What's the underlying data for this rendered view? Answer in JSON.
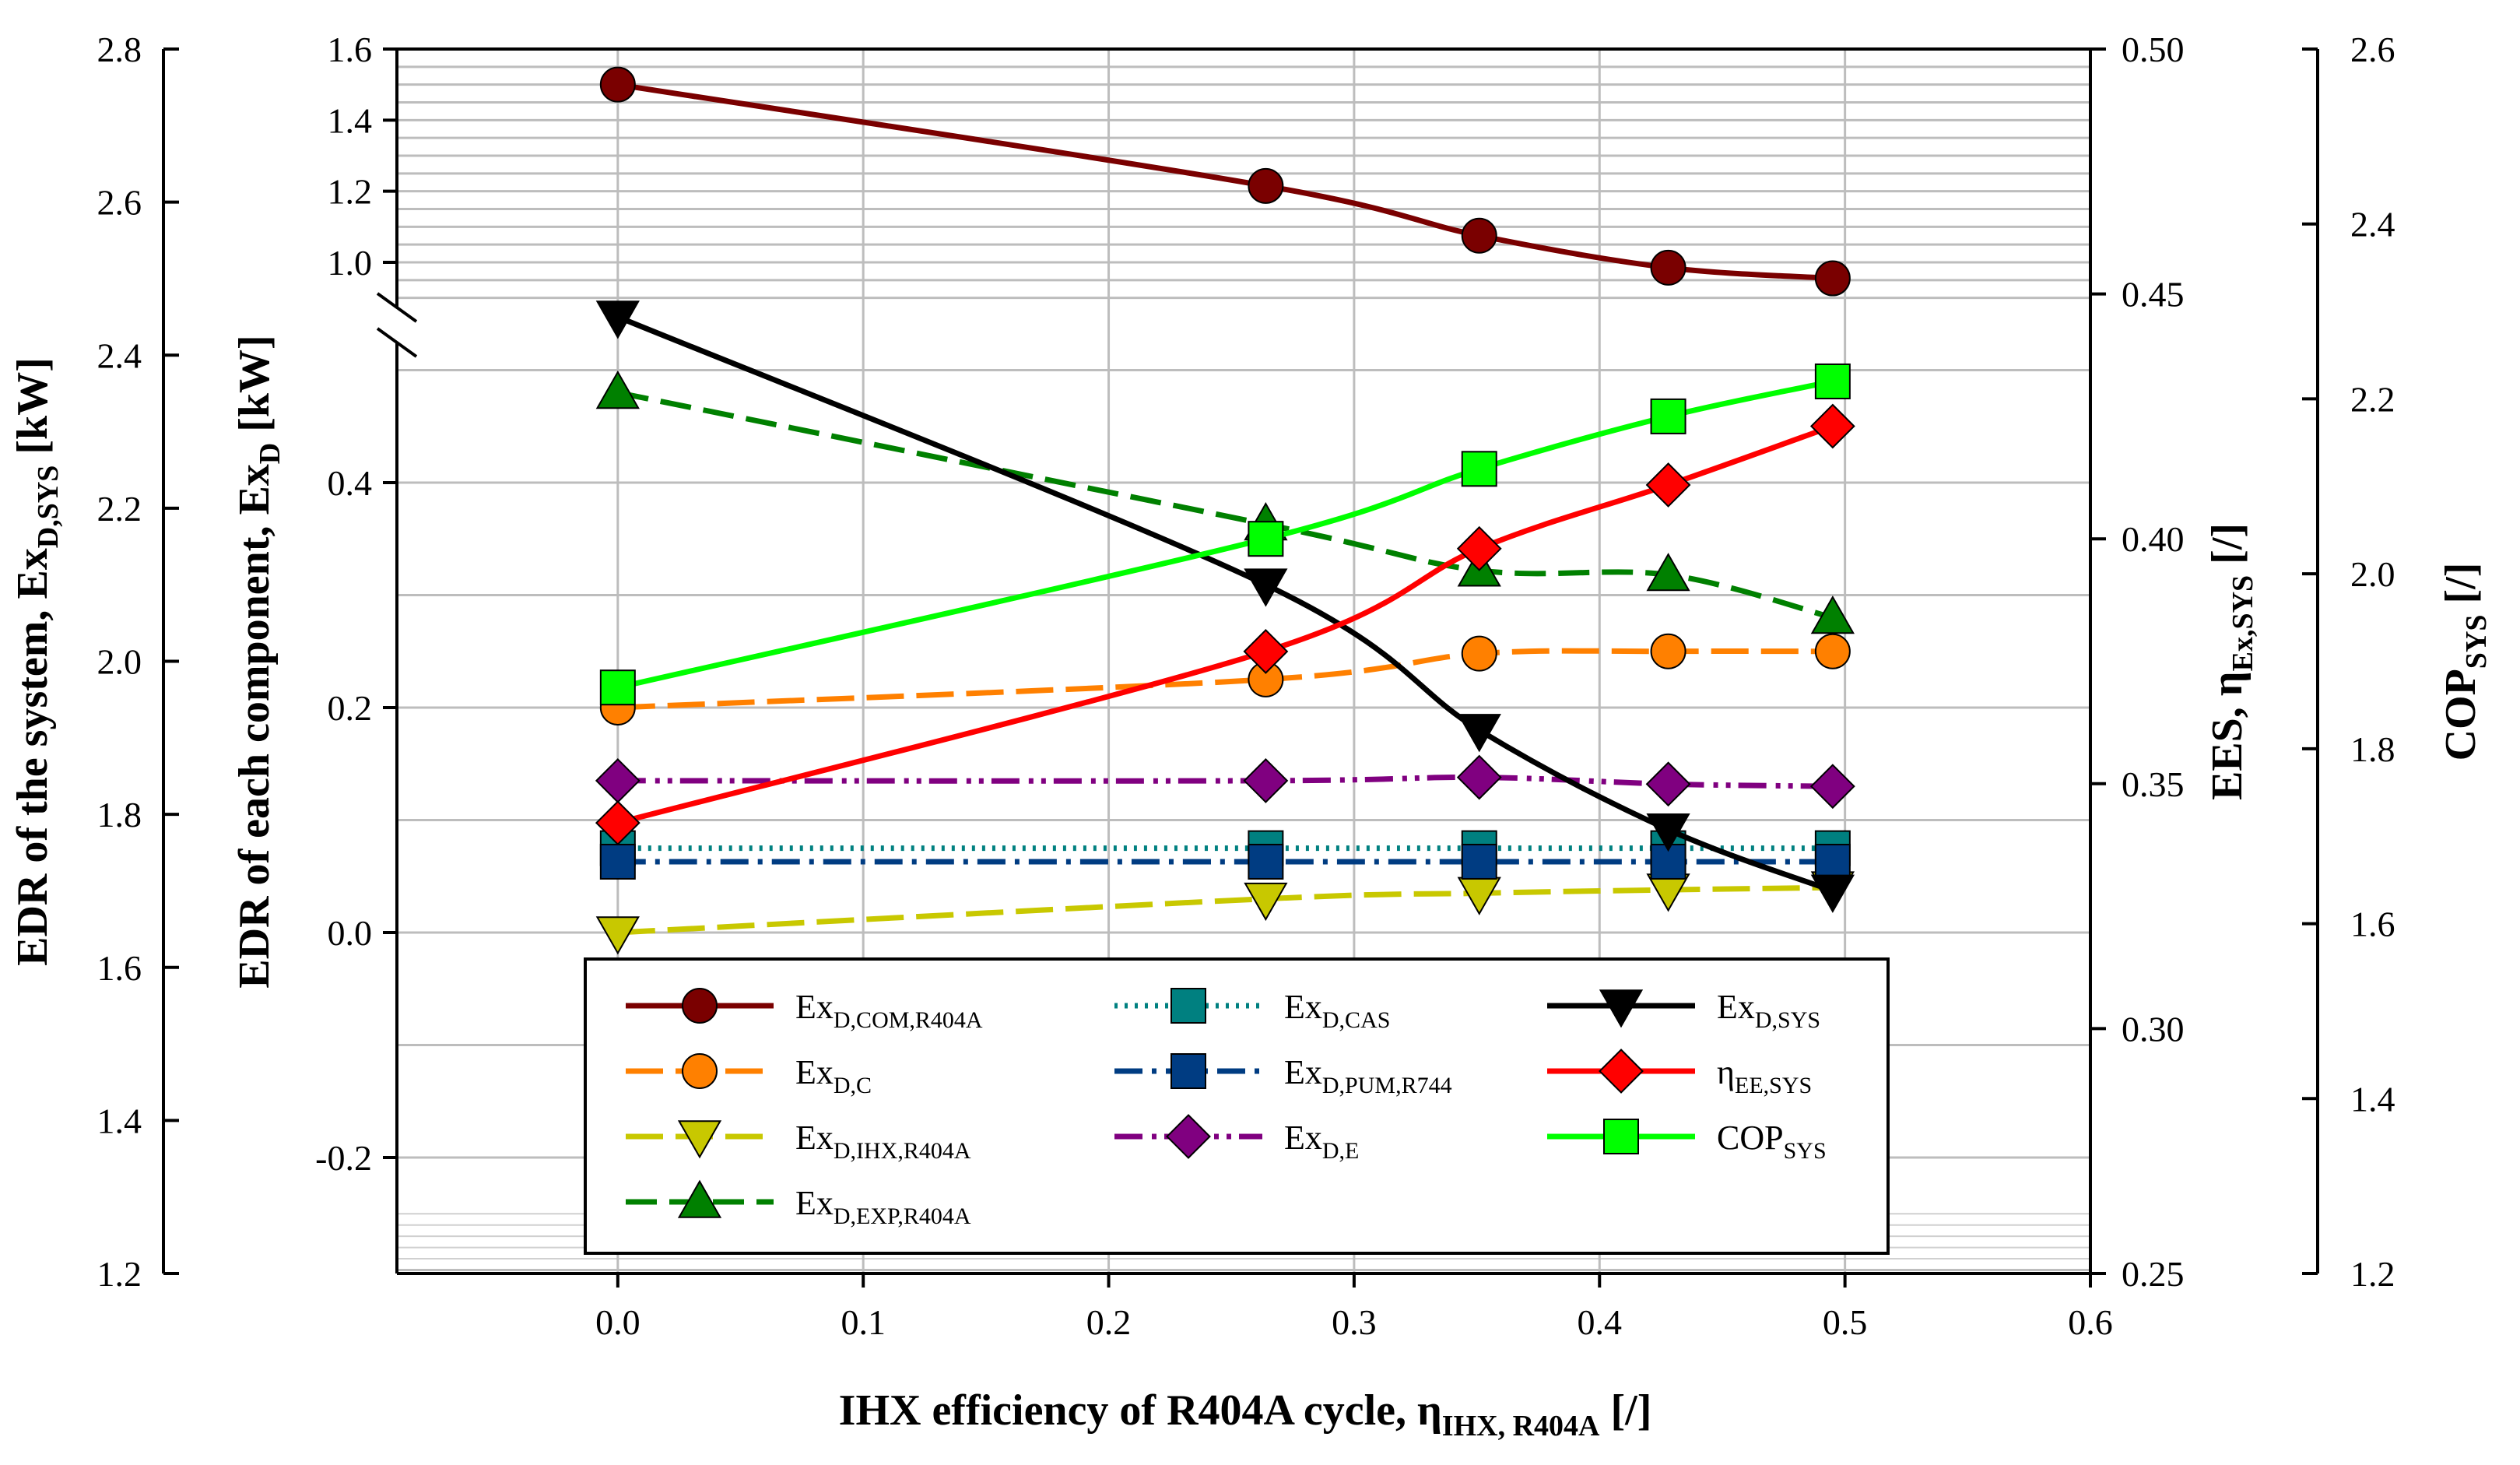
{
  "chart_data": {
    "type": "line",
    "x": [
      0.0,
      0.264,
      0.351,
      0.428,
      0.495
    ],
    "x_axis": {
      "title": "IHX efficiency of R404A cycle, η",
      "title_sub": "IHX, R404A",
      "title_suffix": " [/]",
      "range": [
        -0.09,
        0.6
      ],
      "ticks": [
        "0.0",
        "0.1",
        "0.2",
        "0.3",
        "0.4",
        "0.5",
        "0.6"
      ]
    },
    "left_axis_outer": {
      "title": "EDR of the system, Ex",
      "title_sub": "D,SYS",
      "title_suffix": " [kW]",
      "range": [
        1.2,
        2.8
      ],
      "ticks": [
        "1.2",
        "1.4",
        "1.6",
        "1.8",
        "2.0",
        "2.2",
        "2.4",
        "2.6",
        "2.8"
      ]
    },
    "left_axis_inner": {
      "title": "EDR of each component, Ex",
      "title_sub": "D",
      "title_suffix": " [kW]",
      "lower_range": [
        -0.3,
        0.5
      ],
      "upper_range": [
        0.9,
        1.6
      ],
      "ticks_lower": [
        "-0.2",
        "0.0",
        "0.2",
        "0.4"
      ],
      "ticks_upper": [
        "1.0",
        "1.2",
        "1.4",
        "1.6"
      ]
    },
    "right_axis_1": {
      "title": "EES, η",
      "title_sub": "Ex,SYS",
      "title_suffix": " [/]",
      "range": [
        0.25,
        0.5
      ],
      "ticks": [
        "0.25",
        "0.30",
        "0.35",
        "0.40",
        "0.45",
        "0.50"
      ]
    },
    "right_axis_2": {
      "title": "COP",
      "title_sub": "SYS",
      "title_suffix": " [/]",
      "range": [
        1.2,
        2.6
      ],
      "ticks": [
        "1.2",
        "1.4",
        "1.6",
        "1.8",
        "2.0",
        "2.2",
        "2.4",
        "2.6"
      ]
    },
    "series": [
      {
        "name": "Ex",
        "sub": "D,COM,R404A",
        "axis": "component",
        "values": [
          1.5,
          1.215,
          1.075,
          0.985,
          0.955
        ],
        "color": "#7a0000",
        "marker": "circle",
        "dash": ""
      },
      {
        "name": "Ex",
        "sub": "D,C",
        "axis": "component",
        "values": [
          0.2,
          0.225,
          0.248,
          0.25,
          0.25
        ],
        "color": "#ff8000",
        "marker": "circle",
        "dash": "48,16"
      },
      {
        "name": "Ex",
        "sub": "D,IHX,R404A",
        "axis": "component",
        "values": [
          0.0,
          0.03,
          0.035,
          0.038,
          0.04
        ],
        "color": "#c8c800",
        "marker": "tri-down",
        "dash": "48,16"
      },
      {
        "name": "Ex",
        "sub": "D,EXP,R404A",
        "axis": "component",
        "values": [
          0.48,
          0.363,
          0.322,
          0.318,
          0.28
        ],
        "color": "#008000",
        "marker": "tri-up",
        "dash": "40,16"
      },
      {
        "name": "Ex",
        "sub": "D,CAS",
        "axis": "component",
        "values": [
          0.075,
          0.075,
          0.075,
          0.075,
          0.075
        ],
        "color": "#008080",
        "marker": "square",
        "dash": "4,9"
      },
      {
        "name": "Ex",
        "sub": "D,PUM,R744",
        "axis": "component",
        "values": [
          0.063,
          0.063,
          0.063,
          0.063,
          0.063
        ],
        "color": "#003c82",
        "marker": "square",
        "dash": "36,12,6,12"
      },
      {
        "name": "Ex",
        "sub": "D,E",
        "axis": "component",
        "values": [
          0.135,
          0.135,
          0.138,
          0.132,
          0.13
        ],
        "color": "#800080",
        "marker": "diamond",
        "dash": "36,12,6,10,6,10"
      },
      {
        "name": "Ex",
        "sub": "D,SYS",
        "axis": "system",
        "values": [
          2.45,
          2.1,
          1.91,
          1.78,
          1.7
        ],
        "color": "#000000",
        "marker": "tri-down",
        "dash": ""
      },
      {
        "name": "η",
        "sub": "EE,SYS",
        "axis": "ees",
        "values": [
          0.342,
          0.377,
          0.398,
          0.411,
          0.423
        ],
        "color": "#ff0000",
        "marker": "diamond",
        "dash": ""
      },
      {
        "name": "COP",
        "sub": "SYS",
        "axis": "cop",
        "values": [
          1.87,
          2.04,
          2.12,
          2.18,
          2.22
        ],
        "color": "#00ff00",
        "marker": "square",
        "dash": ""
      }
    ],
    "legend_position": "bottom-center",
    "grid": true
  }
}
